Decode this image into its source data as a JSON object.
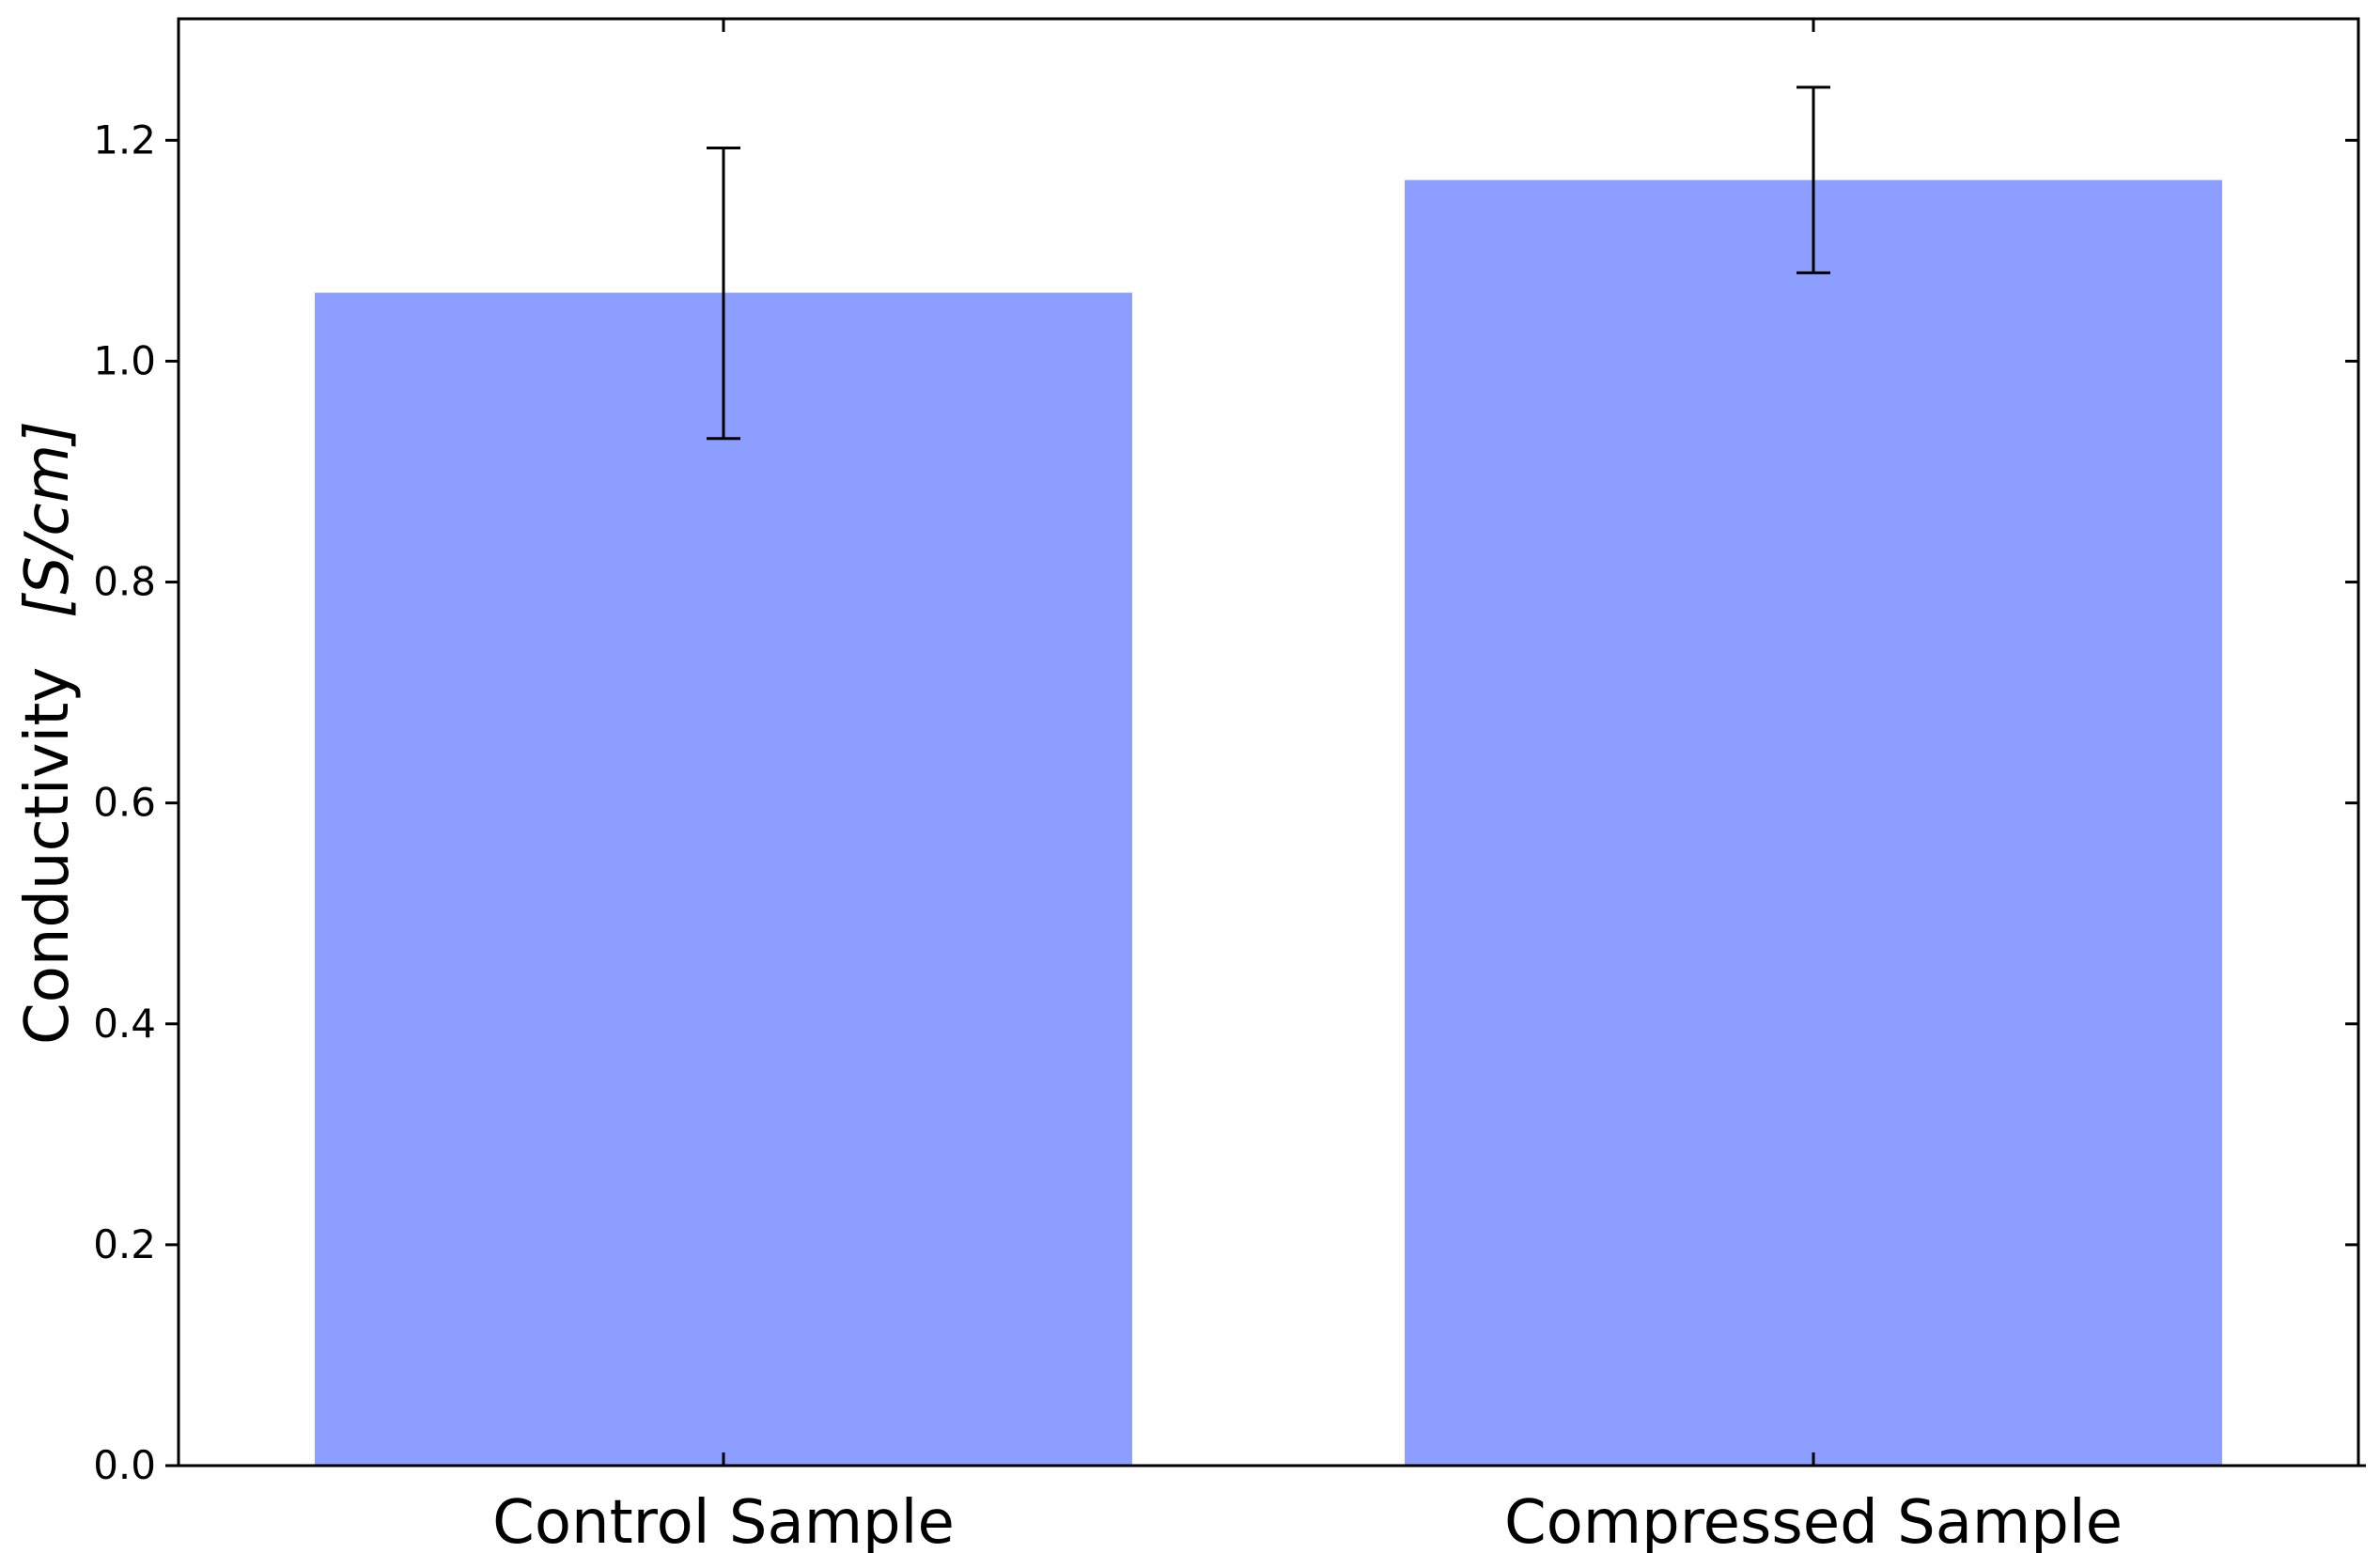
{
  "chart_data": {
    "type": "bar",
    "categories": [
      "Control Sample",
      "Compressed Sample"
    ],
    "values": [
      1.062,
      1.164
    ],
    "error": [
      {
        "low": 0.93,
        "high": 1.193
      },
      {
        "low": 1.08,
        "high": 1.248
      }
    ],
    "title": "",
    "xlabel": "",
    "ylabel": "Conductivity",
    "ylabel_unit": "[S/cm]",
    "ylim": [
      0.0,
      1.31
    ],
    "yticks": [
      0.0,
      0.2,
      0.4,
      0.6,
      0.8,
      1.0,
      1.2
    ],
    "ytick_labels": [
      "0.0",
      "0.2",
      "0.4",
      "0.6",
      "0.8",
      "1.0",
      "1.2"
    ],
    "grid": false,
    "bar_color": "#8c9eff",
    "error_color": "#000000"
  }
}
